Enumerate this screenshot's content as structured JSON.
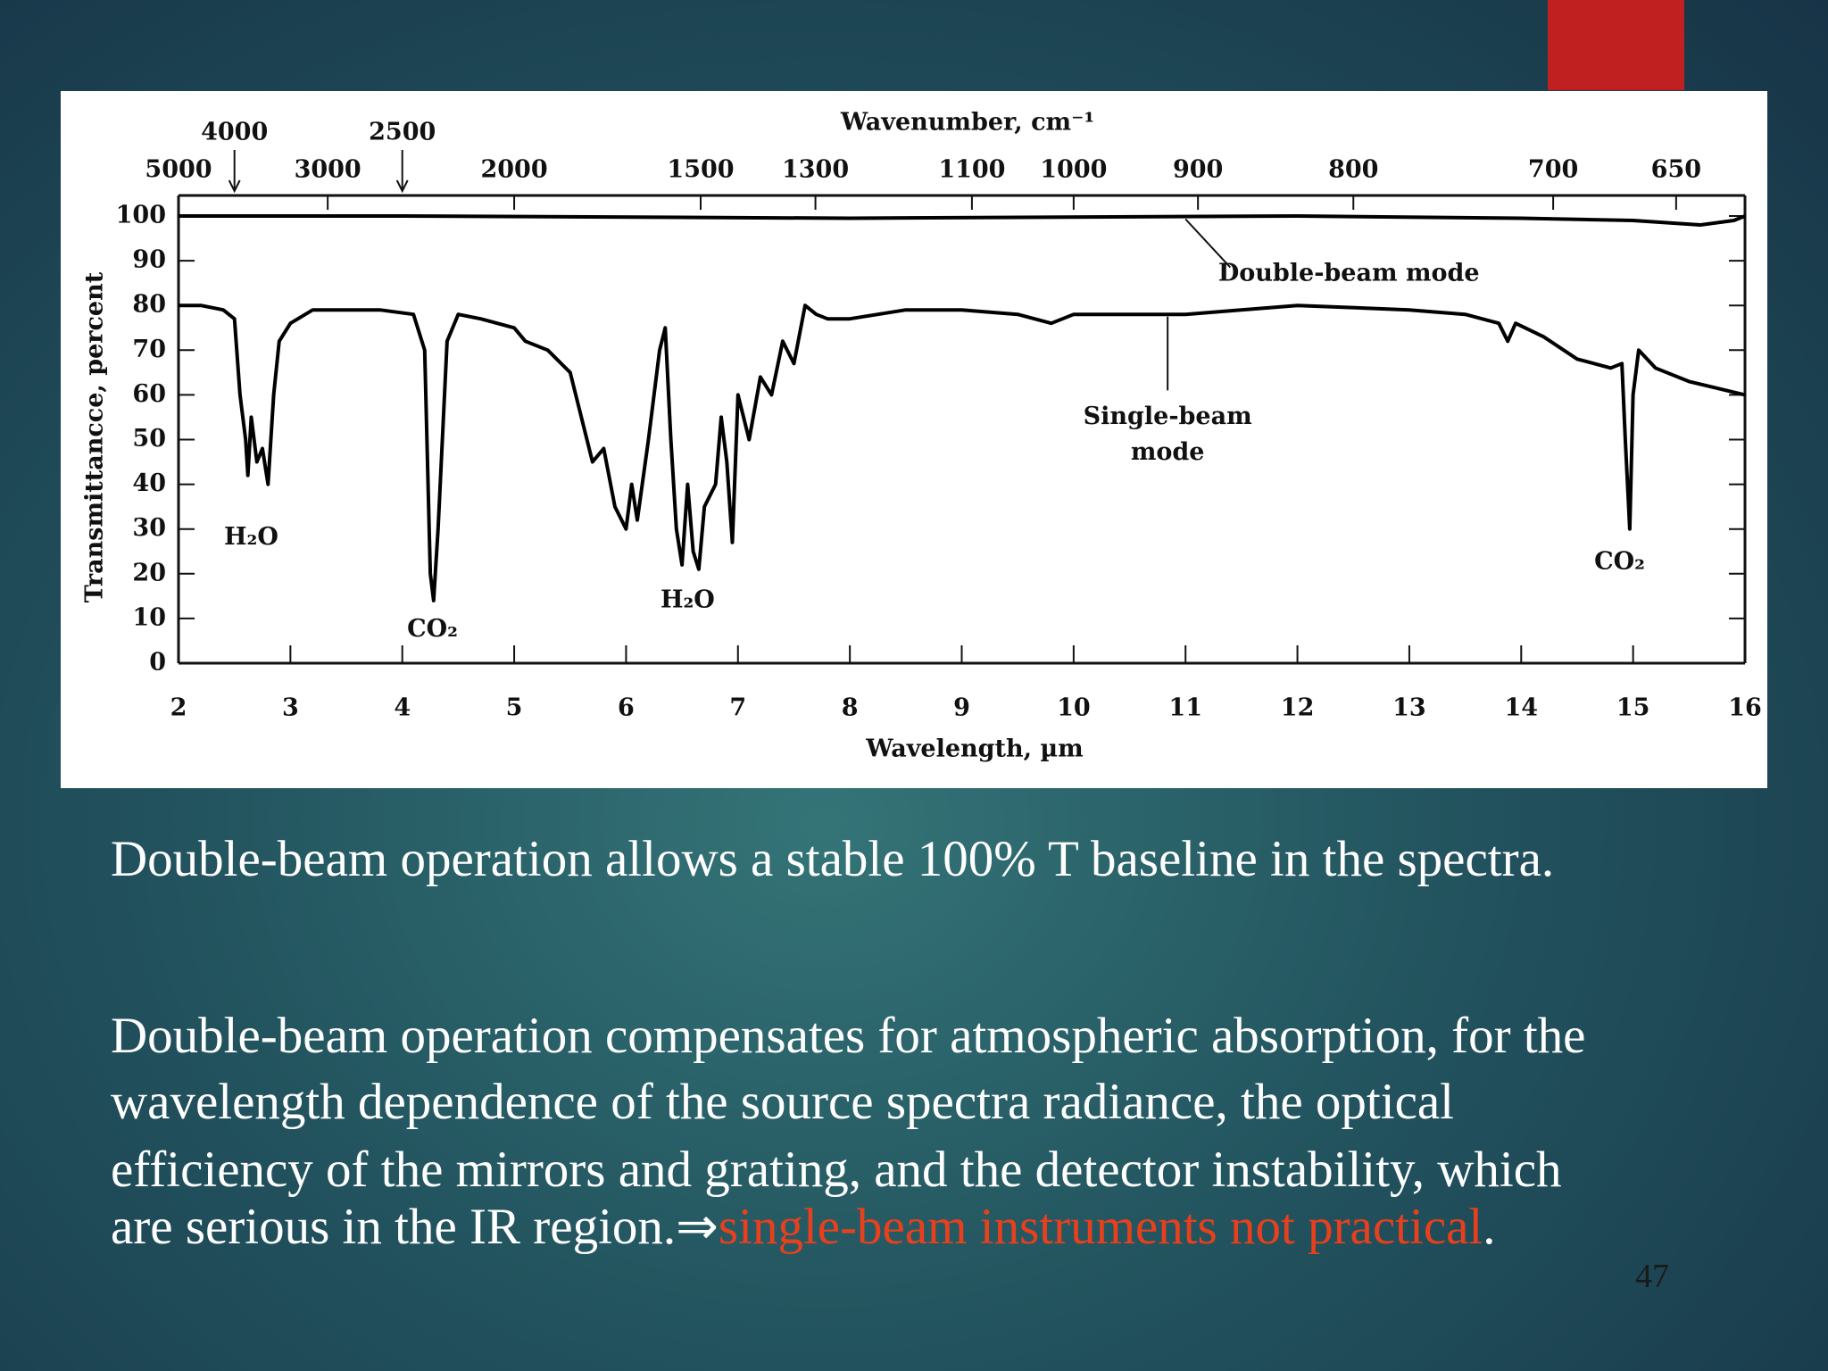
{
  "chart_data": {
    "type": "line",
    "title": "Wavenumber, cm⁻¹",
    "xlabel": "Wavelength, µm",
    "ylabel": "Transmittancce, percent",
    "xlim": [
      2,
      16
    ],
    "xticks": [
      2,
      3,
      4,
      5,
      6,
      7,
      8,
      9,
      10,
      11,
      12,
      13,
      14,
      15,
      16
    ],
    "ylim": [
      0,
      100
    ],
    "yticks": [
      0,
      10,
      20,
      30,
      40,
      50,
      60,
      70,
      80,
      90,
      100
    ],
    "x2ticks": [
      5000,
      3000,
      2000,
      1500,
      1300,
      1100,
      1000,
      900,
      800,
      700,
      650
    ],
    "x2ticks_marked": [
      4000,
      2500
    ],
    "color": "#000000",
    "series": [
      {
        "name": "Double-beam mode",
        "x": [
          2,
          4,
          8,
          12,
          14,
          15,
          15.6,
          15.9,
          16
        ],
        "values": [
          100,
          100,
          99.5,
          100,
          99.5,
          99,
          98,
          99,
          100
        ]
      },
      {
        "name": "Single-beam mode",
        "x": [
          2,
          2.2,
          2.4,
          2.5,
          2.55,
          2.6,
          2.62,
          2.65,
          2.7,
          2.75,
          2.8,
          2.85,
          2.9,
          3,
          3.2,
          3.5,
          3.8,
          4.1,
          4.2,
          4.25,
          4.28,
          4.32,
          4.4,
          4.5,
          4.7,
          5,
          5.1,
          5.3,
          5.5,
          5.6,
          5.7,
          5.8,
          5.9,
          6,
          6.05,
          6.1,
          6.2,
          6.3,
          6.35,
          6.4,
          6.45,
          6.5,
          6.55,
          6.6,
          6.65,
          6.7,
          6.8,
          6.85,
          6.9,
          6.95,
          7,
          7.1,
          7.2,
          7.3,
          7.4,
          7.5,
          7.6,
          7.7,
          7.8,
          8,
          8.5,
          9,
          9.5,
          9.8,
          10,
          11,
          12,
          13,
          13.5,
          13.8,
          13.88,
          13.95,
          14.2,
          14.5,
          14.8,
          14.9,
          14.93,
          14.97,
          15,
          15.05,
          15.2,
          15.5,
          16
        ],
        "values": [
          80,
          80,
          79,
          77,
          60,
          50,
          42,
          55,
          45,
          48,
          40,
          60,
          72,
          76,
          79,
          79,
          79,
          78,
          70,
          20,
          14,
          30,
          72,
          78,
          77,
          75,
          72,
          70,
          65,
          55,
          45,
          48,
          35,
          30,
          40,
          32,
          50,
          70,
          75,
          50,
          30,
          22,
          40,
          25,
          21,
          35,
          40,
          55,
          45,
          27,
          60,
          50,
          64,
          60,
          72,
          67,
          80,
          78,
          77,
          77,
          79,
          79,
          78,
          76,
          78,
          78,
          80,
          79,
          78,
          76,
          72,
          76,
          73,
          68,
          66,
          67,
          50,
          30,
          60,
          70,
          66,
          63,
          60
        ]
      }
    ],
    "annotations": [
      "H₂O",
      "CO₂",
      "H₂O",
      "CO₂",
      "Double-beam mode",
      "Single-beam",
      "mode"
    ]
  },
  "slide": {
    "paragraph_1": "Double-beam operation allows a stable 100% T baseline in the spectra.",
    "paragraph_2": [
      "Double-beam operation compensates for atmospheric absorption, for the",
      "wavelength dependence of the source spectra radiance, the optical",
      "efficiency of the mirrors and grating, and the detector instability, which",
      "are serious in the IR region.⇒"
    ],
    "highlight": "single-beam instruments not practical",
    "end": ".",
    "page_number": 47
  }
}
